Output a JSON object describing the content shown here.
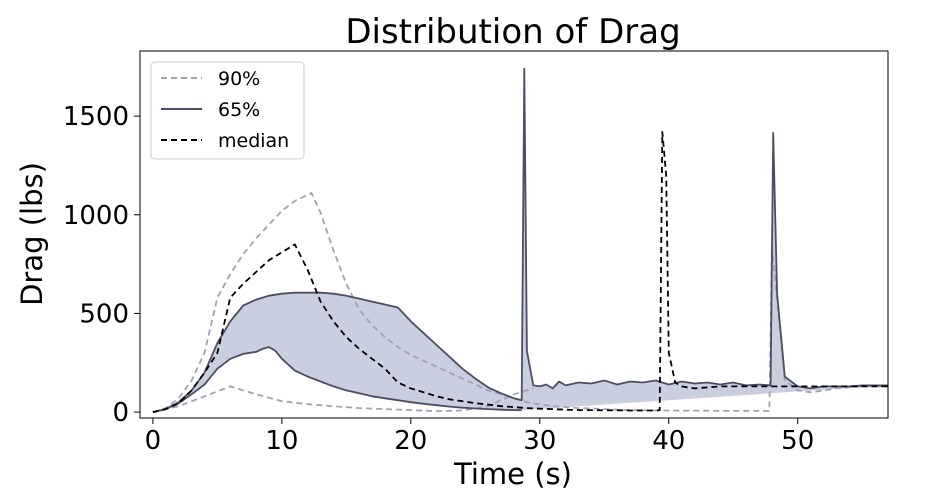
{
  "chart_data": {
    "type": "line",
    "title": "Distribution of Drag",
    "xlabel": "Time (s)",
    "ylabel": "Drag (lbs)",
    "xlim": [
      -1,
      57
    ],
    "ylim": [
      -30,
      1830
    ],
    "xticks": [
      0,
      10,
      20,
      30,
      40,
      50
    ],
    "yticks": [
      0,
      500,
      1000,
      1500
    ],
    "grid": false,
    "legend_position": "top-left",
    "band_color": "#c9cfdf",
    "series": [
      {
        "name": "90%",
        "style": "dashed",
        "color": "#a39fb6",
        "x": [
          0,
          1,
          2,
          3,
          4,
          5,
          6,
          7,
          8,
          9,
          10,
          11,
          12.3,
          13,
          14,
          15,
          16,
          17,
          18,
          19,
          20,
          21,
          22,
          23,
          24,
          25,
          26,
          27,
          28,
          29,
          30,
          31,
          32,
          33,
          34,
          35,
          36,
          37,
          38,
          39,
          39.5,
          40,
          41,
          42,
          43,
          44,
          45,
          46,
          47,
          47.8,
          48,
          48.5,
          49,
          50,
          51,
          52,
          53,
          54,
          55,
          56,
          57
        ],
        "y": [
          0,
          20,
          70,
          160,
          300,
          580,
          700,
          800,
          880,
          950,
          1020,
          1070,
          1110,
          1010,
          820,
          650,
          520,
          440,
          380,
          330,
          290,
          260,
          230,
          200,
          170,
          140,
          110,
          90,
          70,
          50,
          40,
          30,
          25,
          20,
          18,
          15,
          12,
          10,
          9,
          8,
          8,
          8,
          7,
          7,
          7,
          6,
          6,
          6,
          6,
          5,
          840,
          500,
          160,
          110,
          100,
          110,
          120,
          125,
          130,
          130,
          130
        ]
      },
      {
        "name": "65%",
        "style": "solid",
        "color": "#4d4d65",
        "x": [
          0,
          1,
          2,
          3,
          4,
          5,
          6,
          7,
          8,
          9,
          9.5,
          10,
          11,
          12,
          13,
          14,
          15,
          16,
          17,
          18,
          19,
          20,
          21,
          22,
          23,
          24,
          25,
          26,
          27,
          28,
          28.6,
          28.8,
          29,
          29.5,
          30,
          30.5,
          31,
          31.5,
          32,
          33,
          34,
          35,
          36,
          37,
          38,
          39,
          40,
          41,
          42,
          43,
          44,
          45,
          46,
          47,
          47.9,
          48.1,
          48.4,
          49,
          50,
          51,
          52,
          53,
          54,
          55,
          56,
          57
        ],
        "y": [
          0,
          15,
          50,
          110,
          200,
          350,
          460,
          540,
          570,
          590,
          595,
          600,
          605,
          605,
          605,
          600,
          590,
          575,
          560,
          545,
          530,
          460,
          400,
          340,
          280,
          220,
          170,
          125,
          95,
          70,
          60,
          1740,
          310,
          135,
          130,
          140,
          120,
          155,
          135,
          150,
          145,
          160,
          140,
          155,
          150,
          160,
          140,
          155,
          145,
          150,
          140,
          150,
          135,
          140,
          135,
          1415,
          600,
          180,
          130,
          120,
          130,
          130,
          130,
          135,
          135,
          135
        ]
      },
      {
        "name": "median",
        "style": "dashed",
        "color": "#000000",
        "x": [
          0,
          1,
          2,
          3,
          4,
          5,
          6,
          7,
          8,
          9,
          10,
          11,
          12,
          13,
          14,
          15,
          16,
          17,
          18,
          19,
          20,
          21,
          22,
          23,
          24,
          25,
          26,
          27,
          28,
          29,
          30,
          31,
          32,
          33,
          34,
          35,
          36,
          37,
          38,
          39,
          39.3,
          39.5,
          39.8,
          40,
          40.5,
          41,
          42,
          43,
          44,
          45,
          46,
          47,
          48,
          49,
          50,
          51,
          52,
          53,
          54,
          55,
          56,
          57
        ],
        "y": [
          0,
          15,
          45,
          110,
          200,
          300,
          580,
          650,
          710,
          770,
          810,
          850,
          720,
          560,
          460,
          380,
          320,
          270,
          220,
          150,
          120,
          100,
          80,
          65,
          55,
          45,
          38,
          30,
          25,
          20,
          17,
          15,
          12,
          10,
          10,
          9,
          9,
          8,
          8,
          8,
          10,
          1420,
          1200,
          300,
          150,
          130,
          120,
          125,
          130,
          130,
          130,
          130,
          130,
          130,
          130,
          130,
          130,
          130,
          130,
          130,
          130,
          130
        ]
      },
      {
        "name": "",
        "style": "dashed",
        "color": "#a39fb6",
        "x": [
          0,
          2,
          4,
          6,
          8,
          10,
          12,
          14,
          16,
          18,
          20,
          22,
          24,
          26,
          27,
          28,
          29,
          29.5
        ],
        "y": [
          0,
          30,
          80,
          130,
          90,
          55,
          40,
          30,
          20,
          15,
          10,
          5,
          8,
          30,
          60,
          90,
          110,
          120
        ]
      },
      {
        "name": "",
        "style": "solid",
        "color": "#4d4d65",
        "x": [
          0,
          1,
          2,
          3,
          4,
          5,
          6,
          7,
          8,
          8.5,
          9,
          9.5,
          10,
          11,
          12,
          13,
          14,
          15,
          16,
          17,
          18,
          19,
          20,
          21,
          22,
          23,
          24,
          25,
          26,
          27,
          28,
          28.6
        ],
        "y": [
          0,
          15,
          45,
          90,
          140,
          220,
          270,
          295,
          305,
          320,
          330,
          310,
          270,
          210,
          180,
          155,
          130,
          110,
          95,
          80,
          70,
          60,
          50,
          42,
          35,
          28,
          22,
          18,
          15,
          12,
          10,
          10
        ]
      }
    ]
  }
}
